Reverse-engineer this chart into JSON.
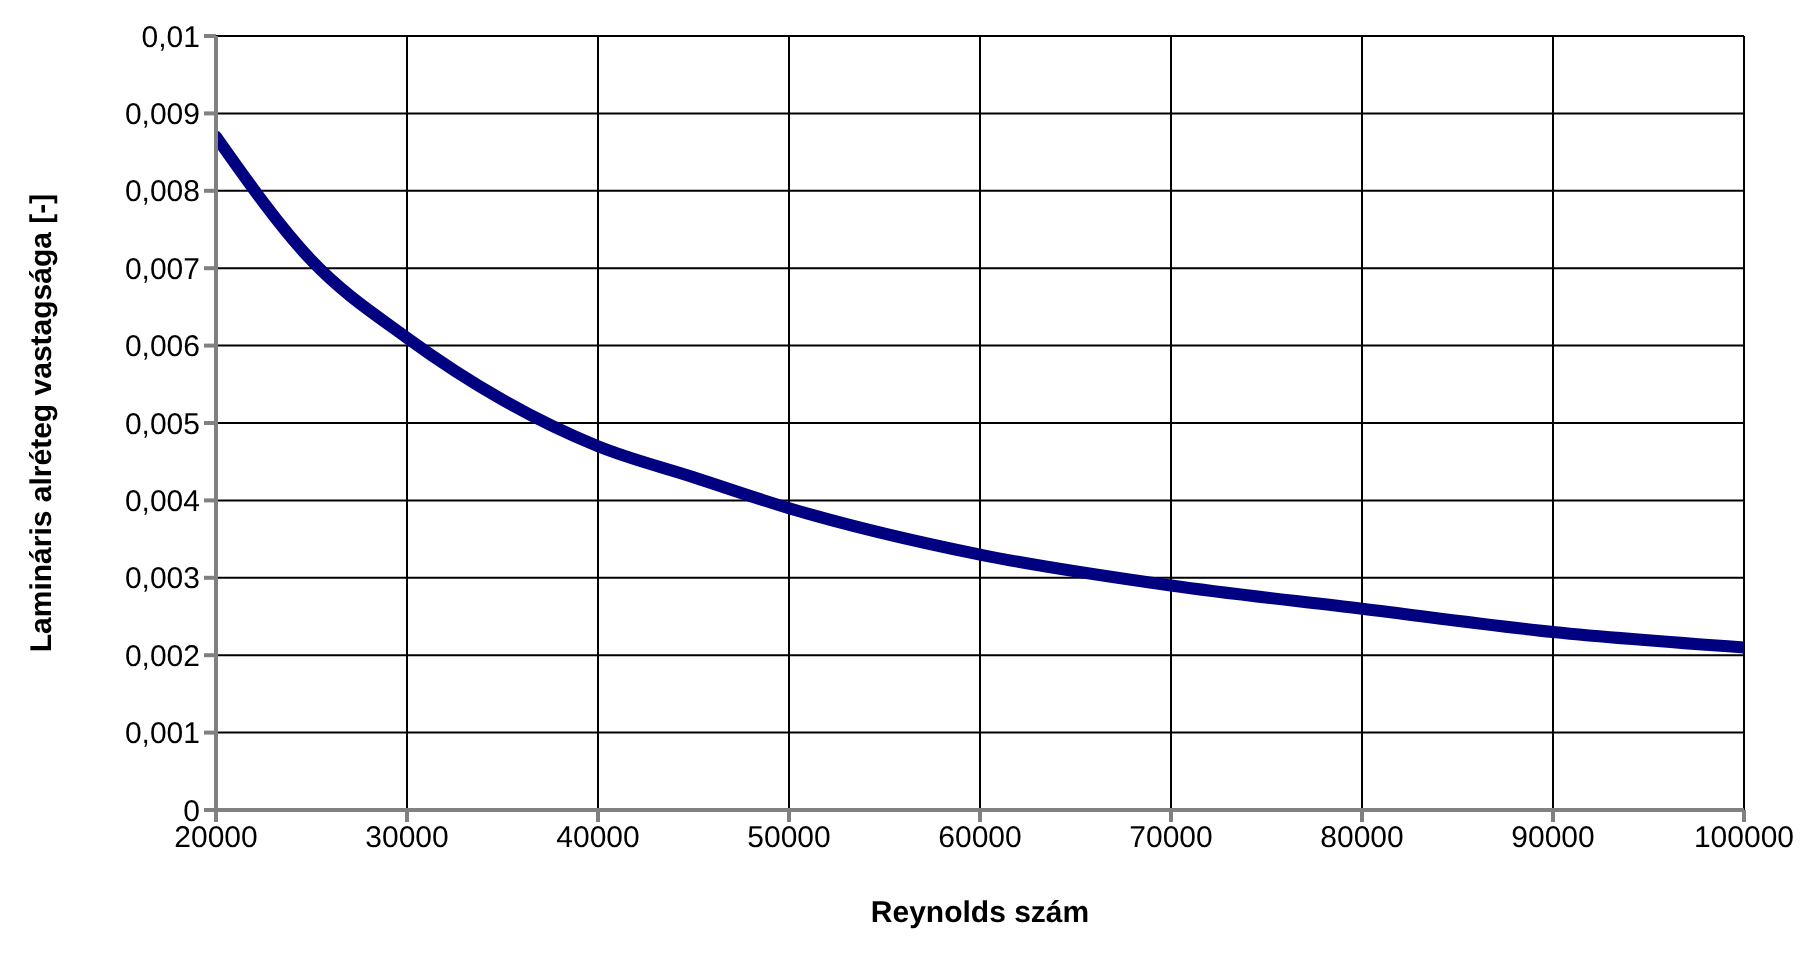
{
  "chart_data": {
    "type": "line",
    "xlabel": "Reynolds szám",
    "ylabel": "Lamináris alréteg vastagsága [-]",
    "x": [
      20000,
      25000,
      30000,
      35000,
      40000,
      45000,
      50000,
      60000,
      70000,
      80000,
      90000,
      100000
    ],
    "series": [
      {
        "color": "#000080",
        "values": [
          0.0087,
          0.0071,
          0.0061,
          0.0053,
          0.0047,
          0.0043,
          0.0039,
          0.0033,
          0.0029,
          0.0026,
          0.0023,
          0.0021
        ]
      }
    ],
    "xlim": [
      20000,
      100000
    ],
    "xticks": [
      20000,
      30000,
      40000,
      50000,
      60000,
      70000,
      80000,
      90000,
      100000
    ],
    "ylim": [
      0,
      0.01
    ],
    "yticks": [
      0,
      {
        "value": 0.001,
        "label": "0,001"
      },
      {
        "value": 0.002,
        "label": "0,002"
      },
      {
        "value": 0.003,
        "label": "0,003"
      },
      {
        "value": 0.004,
        "label": "0,004"
      },
      {
        "value": 0.005,
        "label": "0,005"
      },
      {
        "value": 0.006,
        "label": "0,006"
      },
      {
        "value": 0.007,
        "label": "0,007"
      },
      {
        "value": 0.008,
        "label": "0,008"
      },
      {
        "value": 0.009,
        "label": "0,009"
      },
      {
        "value": 0.01,
        "label": "0,01"
      }
    ],
    "grid": true,
    "marker": "none",
    "line_style": "solid",
    "legend": false
  }
}
